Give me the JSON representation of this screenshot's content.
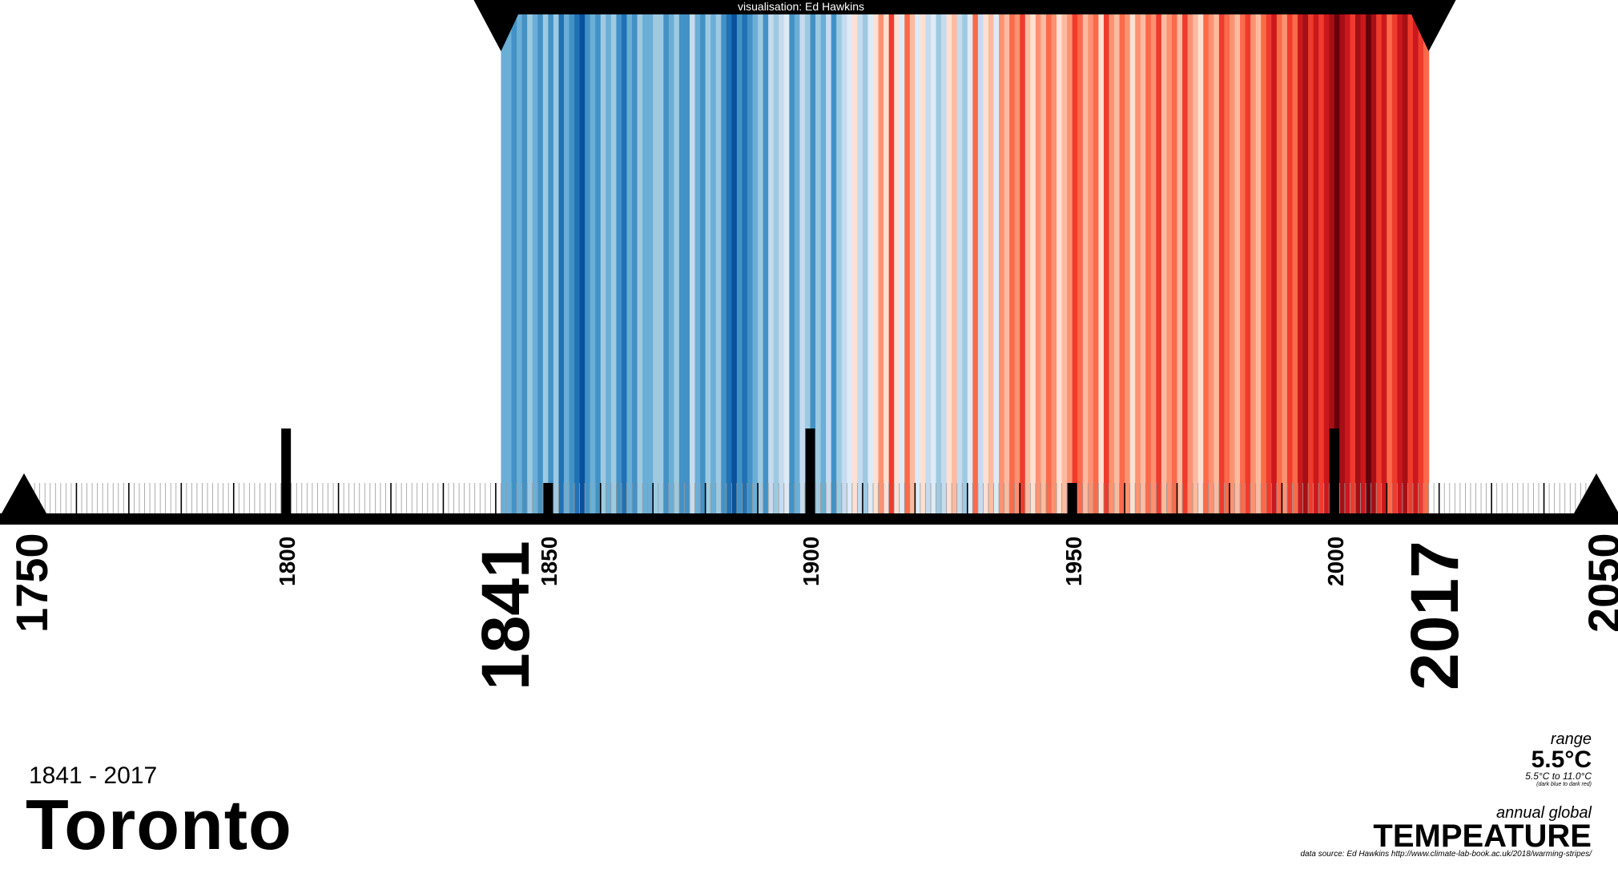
{
  "credit": "visualisation: Ed Hawkins",
  "subtitle": "1841 - 2017",
  "city": "Toronto",
  "range": {
    "label": "range",
    "value": "5.5°C",
    "detail": "5.5°C  to 11.0°C",
    "note": "(dark blue to dark red)"
  },
  "metric": {
    "label": "annual global",
    "title": "TEMPEATURE"
  },
  "source": "data source: Ed Hawkins    http://www.climate-lab-book.ac.uk/2018/warming-stripes/",
  "colors": {
    "stripes": [
      "#08306b",
      "#08519c",
      "#2171b5",
      "#4292c6",
      "#6baed6",
      "#9ecae1",
      "#c6dbef",
      "#deebf7",
      "#fee0d2",
      "#fcbba1",
      "#fc9272",
      "#fb6a4a",
      "#ef3b2c",
      "#cb181d",
      "#a50f15",
      "#67000d"
    ]
  },
  "chart_data": {
    "type": "heatmap",
    "axis": {
      "min": 1750,
      "max": 2050,
      "major_ticks": [
        1800,
        1900,
        2000
      ],
      "minor_ticks": [
        1850,
        1950
      ],
      "labeled_ticks": [
        "1750",
        "1800",
        "1850",
        "1900",
        "1950",
        "2000",
        "2050"
      ]
    },
    "start_year": 1841,
    "end_year": 2017,
    "start_label": "1841",
    "end_label": "2017",
    "range_c": [
      5.5,
      11.0
    ],
    "levels": [
      4,
      4,
      3,
      4,
      3,
      5,
      4,
      3,
      5,
      3,
      5,
      2,
      4,
      3,
      2,
      1,
      3,
      4,
      3,
      5,
      4,
      5,
      3,
      2,
      4,
      3,
      5,
      4,
      4,
      5,
      5,
      3,
      4,
      5,
      3,
      3,
      6,
      4,
      3,
      5,
      4,
      5,
      3,
      2,
      1,
      3,
      2,
      3,
      4,
      5,
      3,
      6,
      5,
      6,
      7,
      3,
      4,
      6,
      5,
      3,
      5,
      4,
      6,
      3,
      5,
      6,
      7,
      8,
      6,
      5,
      7,
      8,
      10,
      8,
      12,
      8,
      7,
      11,
      9,
      7,
      8,
      6,
      7,
      5,
      6,
      8,
      9,
      6,
      5,
      7,
      11,
      6,
      8,
      9,
      7,
      10,
      9,
      11,
      10,
      12,
      9,
      8,
      10,
      9,
      11,
      10,
      8,
      9,
      10,
      12,
      11,
      9,
      10,
      11,
      8,
      12,
      10,
      9,
      11,
      10,
      8,
      10,
      9,
      11,
      10,
      12,
      9,
      10,
      11,
      9,
      12,
      10,
      9,
      8,
      11,
      10,
      9,
      12,
      11,
      10,
      9,
      11,
      12,
      10,
      9,
      11,
      12,
      13,
      11,
      10,
      12,
      11,
      13,
      14,
      12,
      13,
      12,
      13,
      14,
      15,
      14,
      13,
      12,
      14,
      13,
      15,
      14,
      12,
      13,
      11,
      12,
      13,
      14,
      12,
      13,
      12,
      11
    ]
  }
}
